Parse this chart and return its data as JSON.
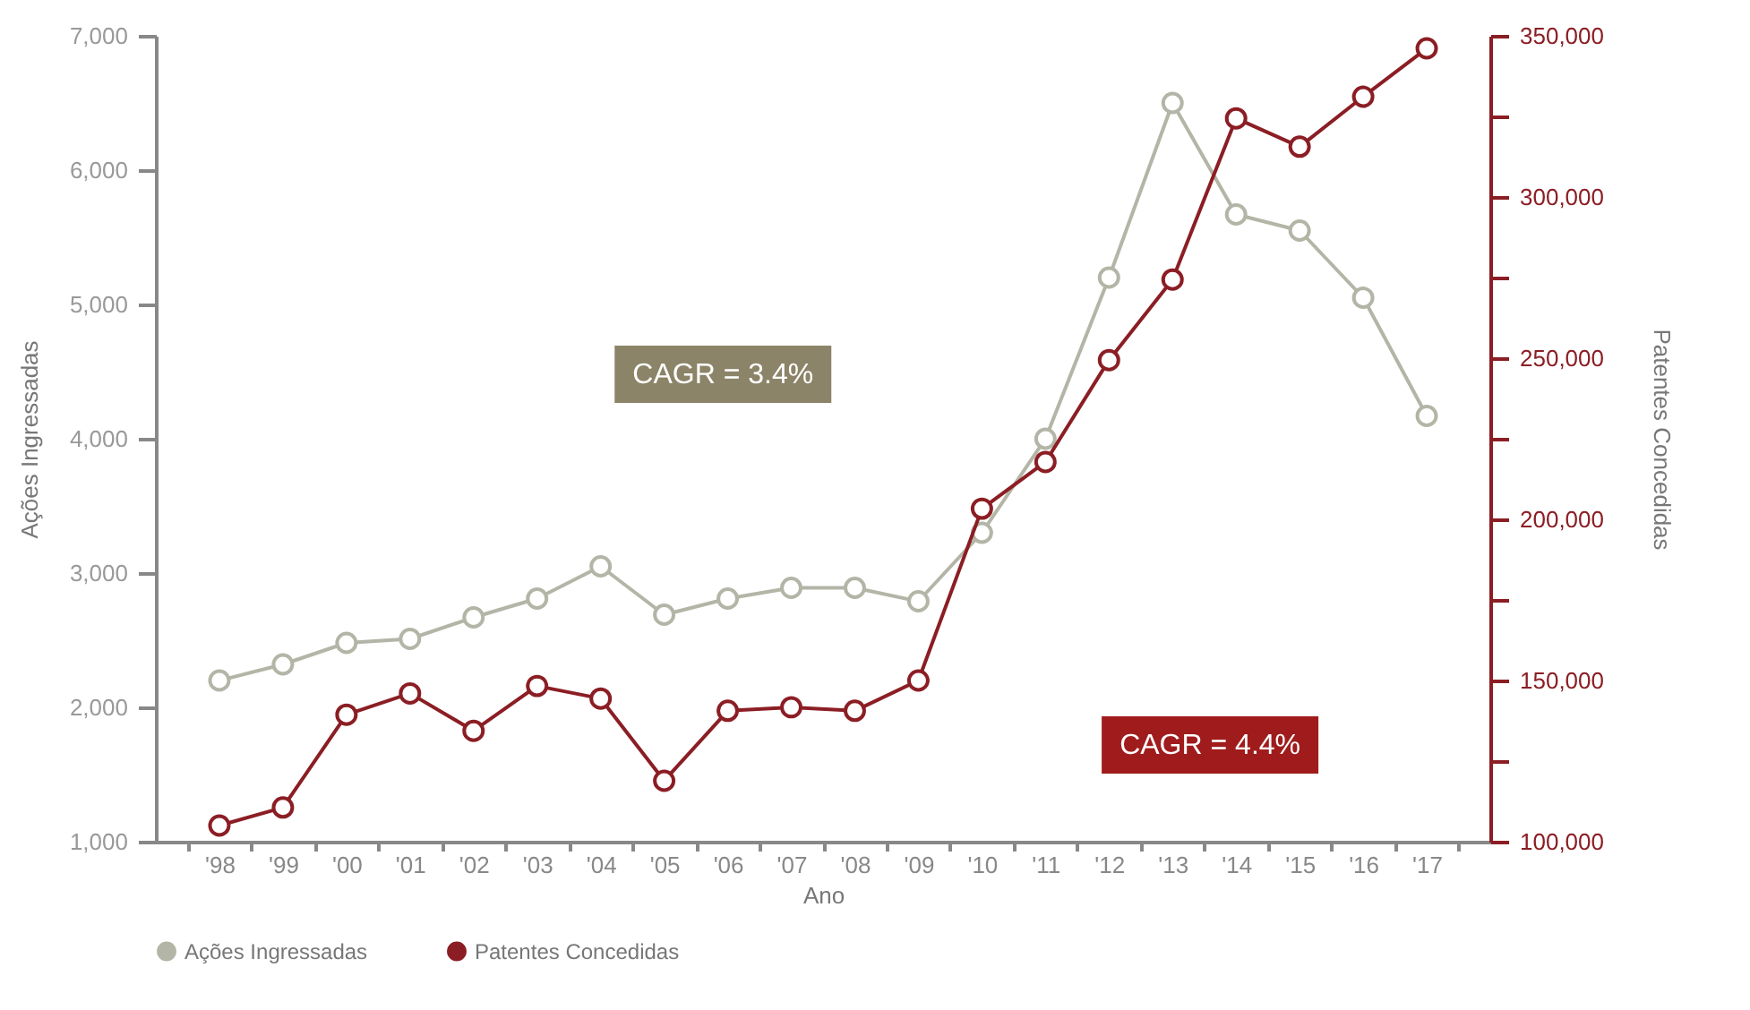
{
  "chart_data": {
    "type": "line",
    "categories": [
      "'98",
      "'99",
      "'00",
      "'01",
      "'02",
      "'03",
      "'04",
      "'05",
      "'06",
      "'07",
      "'08",
      "'09",
      "'10",
      "'11",
      "'12",
      "'13",
      "'14",
      "'15",
      "'16",
      "'17"
    ],
    "xlabel": "Ano",
    "ylabel": "Ações Ingressadas",
    "y2label": "Patentes Concedidas",
    "series": [
      {
        "name": "Ações Ingressadas",
        "color": "#b3b5a6",
        "values": [
          2200,
          2320,
          2480,
          2510,
          2670,
          2810,
          3050,
          2690,
          2810,
          2890,
          2890,
          2790,
          3300,
          4000,
          5200,
          6500,
          5670,
          5550,
          5050,
          4170
        ]
      },
      {
        "name": "Patentes Concedidas",
        "color": "#8b1e24",
        "axis": "y2",
        "values": [
          105000,
          110600,
          139400,
          146000,
          134400,
          148300,
          144400,
          118900,
          140600,
          141700,
          140600,
          150000,
          203300,
          217800,
          249400,
          274400,
          324400,
          315600,
          331100,
          346100
        ]
      }
    ],
    "ylim": [
      1000,
      7000
    ],
    "yticks": [
      {
        "value": 1000,
        "label": "1,000"
      },
      {
        "value": 2000,
        "label": "2,000"
      },
      {
        "value": 3000,
        "label": "3,000"
      },
      {
        "value": 4000,
        "label": "4,000"
      },
      {
        "value": 5000,
        "label": "5,000"
      },
      {
        "value": 6000,
        "label": "6,000"
      },
      {
        "value": 7000,
        "label": "7,000"
      }
    ],
    "y2lim": [
      100000,
      350000
    ],
    "y2ticks": [
      {
        "value": 100000,
        "label": "100,000"
      },
      {
        "value": 125000,
        "label": null
      },
      {
        "value": 150000,
        "label": "150,000"
      },
      {
        "value": 175000,
        "label": null
      },
      {
        "value": 200000,
        "label": "200,000"
      },
      {
        "value": 225000,
        "label": null
      },
      {
        "value": 250000,
        "label": "250,000"
      },
      {
        "value": 275000,
        "label": null
      },
      {
        "value": 300000,
        "label": "300,000"
      },
      {
        "value": 325000,
        "label": null
      },
      {
        "value": 350000,
        "label": "350,000"
      }
    ],
    "annotations": [
      "CAGR = 3.4%",
      "CAGR = 4.4%"
    ],
    "grid": false,
    "legend": "bottom left",
    "marker": "circle",
    "line_style": "solid"
  }
}
